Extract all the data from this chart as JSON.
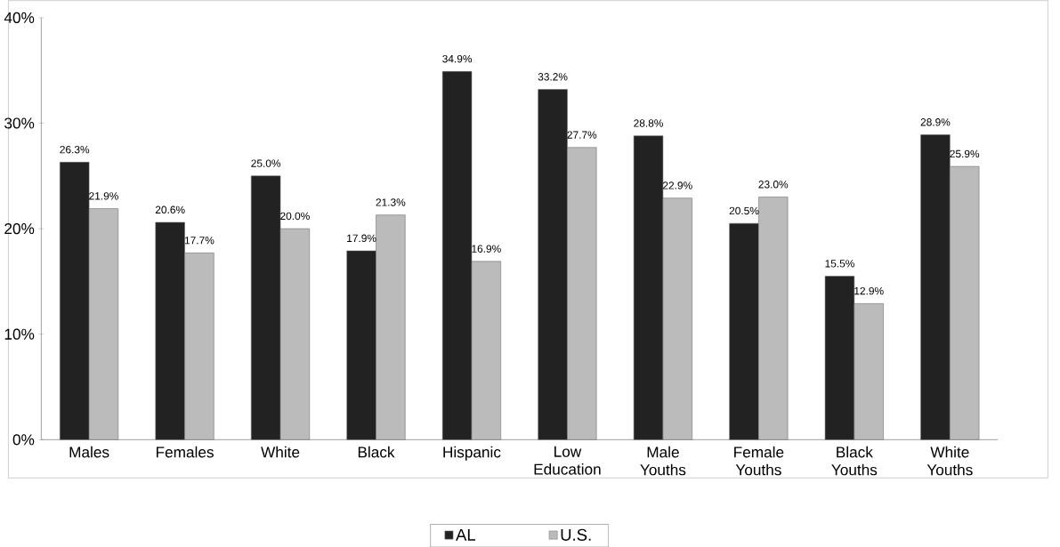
{
  "chart_data": {
    "type": "bar",
    "categories": [
      "Males",
      "Females",
      "White",
      "Black",
      "Hispanic",
      "Low Education",
      "Male Youths",
      "Female Youths",
      "Black Youths",
      "White Youths"
    ],
    "series": [
      {
        "name": "AL",
        "color": "#222222",
        "values": [
          26.3,
          20.6,
          25.0,
          17.9,
          34.9,
          33.2,
          28.8,
          20.5,
          15.5,
          28.9
        ],
        "value_labels": [
          "26.3%",
          "20.6%",
          "25.0%",
          "17.9%",
          "34.9%",
          "33.2%",
          "28.8%",
          "20.5%",
          "15.5%",
          "28.9%"
        ]
      },
      {
        "name": "U.S.",
        "color": "#bbbbbb",
        "values": [
          21.9,
          17.7,
          20.0,
          21.3,
          16.9,
          27.7,
          22.9,
          23.0,
          12.9,
          25.9
        ],
        "value_labels": [
          "21.9%",
          "17.7%",
          "20.0%",
          "21.3%",
          "16.9%",
          "27.7%",
          "22.9%",
          "23.0%",
          "12.9%",
          "25.9%"
        ]
      }
    ],
    "ylim": [
      0,
      40
    ],
    "yticks": [
      {
        "value": 0,
        "label": "0%"
      },
      {
        "value": 10,
        "label": "10%"
      },
      {
        "value": 20,
        "label": "20%"
      },
      {
        "value": 30,
        "label": "30%"
      },
      {
        "value": 40,
        "label": "40%"
      }
    ],
    "legend": "bottom"
  }
}
